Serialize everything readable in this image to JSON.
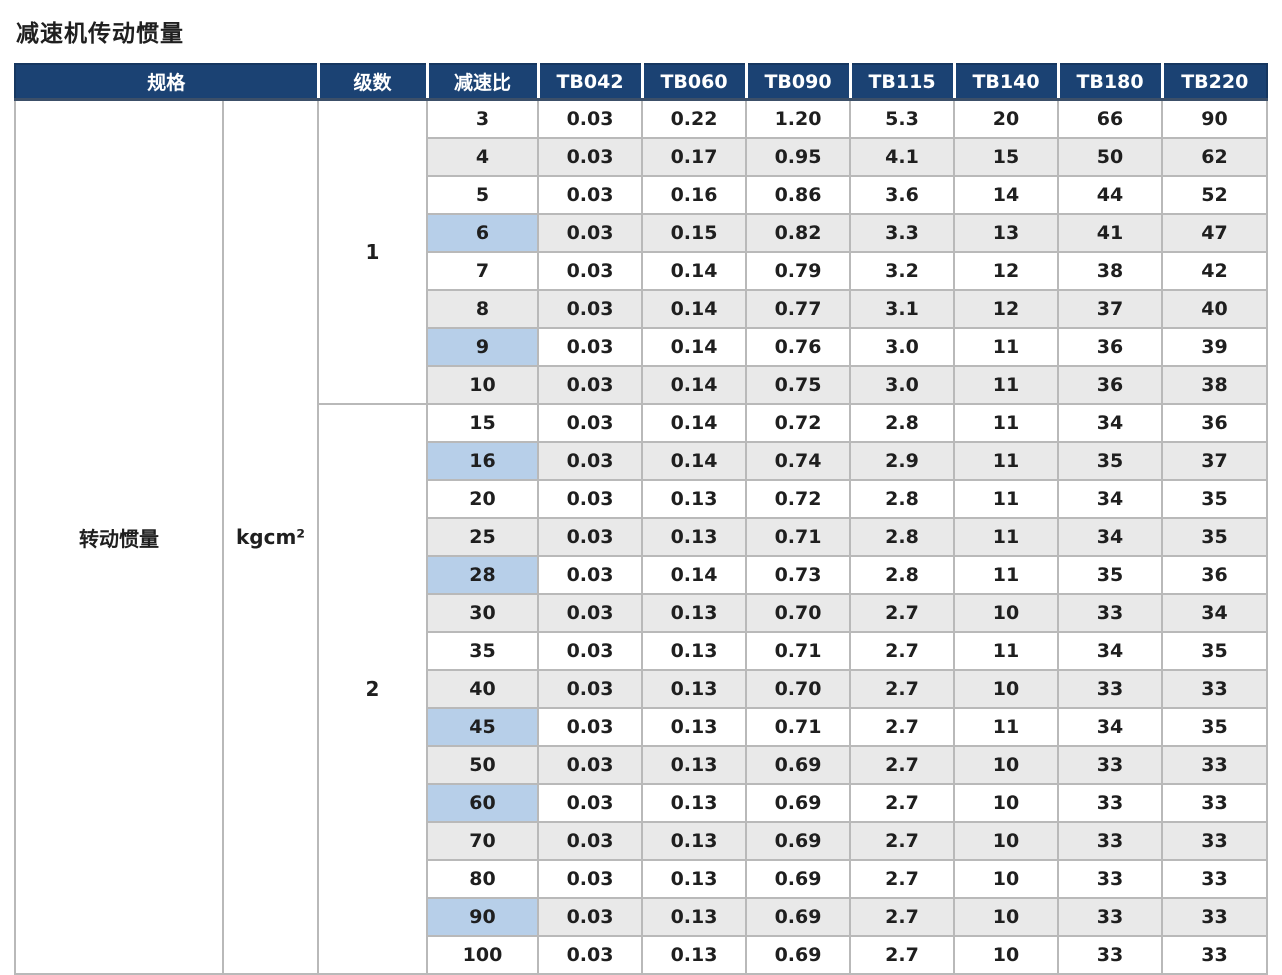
{
  "page_title": "减速机传动惯量",
  "colors": {
    "header_bg": "#1b4273",
    "row_alt_bg": "#e9e9e9",
    "highlight_bg": "#b7cfe9",
    "grid_border": "#b9b9b9",
    "outer_border": "#8f959b",
    "text": "#1f1f1f"
  },
  "table": {
    "headers": [
      "规格",
      "级数",
      "减速比",
      "TB042",
      "TB060",
      "TB090",
      "TB115",
      "TB140",
      "TB180",
      "TB220"
    ],
    "spec_label": "转动惯量",
    "unit_label": "kgcm²",
    "groups": [
      {
        "stage": "1",
        "rows": [
          {
            "ratio": "3",
            "highlight": false,
            "values": [
              "0.03",
              "0.22",
              "1.20",
              "5.3",
              "20",
              "66",
              "90"
            ]
          },
          {
            "ratio": "4",
            "highlight": false,
            "values": [
              "0.03",
              "0.17",
              "0.95",
              "4.1",
              "15",
              "50",
              "62"
            ]
          },
          {
            "ratio": "5",
            "highlight": false,
            "values": [
              "0.03",
              "0.16",
              "0.86",
              "3.6",
              "14",
              "44",
              "52"
            ]
          },
          {
            "ratio": "6",
            "highlight": true,
            "values": [
              "0.03",
              "0.15",
              "0.82",
              "3.3",
              "13",
              "41",
              "47"
            ]
          },
          {
            "ratio": "7",
            "highlight": false,
            "values": [
              "0.03",
              "0.14",
              "0.79",
              "3.2",
              "12",
              "38",
              "42"
            ]
          },
          {
            "ratio": "8",
            "highlight": false,
            "values": [
              "0.03",
              "0.14",
              "0.77",
              "3.1",
              "12",
              "37",
              "40"
            ]
          },
          {
            "ratio": "9",
            "highlight": true,
            "values": [
              "0.03",
              "0.14",
              "0.76",
              "3.0",
              "11",
              "36",
              "39"
            ]
          },
          {
            "ratio": "10",
            "highlight": false,
            "values": [
              "0.03",
              "0.14",
              "0.75",
              "3.0",
              "11",
              "36",
              "38"
            ]
          }
        ]
      },
      {
        "stage": "2",
        "rows": [
          {
            "ratio": "15",
            "highlight": false,
            "values": [
              "0.03",
              "0.14",
              "0.72",
              "2.8",
              "11",
              "34",
              "36"
            ]
          },
          {
            "ratio": "16",
            "highlight": true,
            "values": [
              "0.03",
              "0.14",
              "0.74",
              "2.9",
              "11",
              "35",
              "37"
            ]
          },
          {
            "ratio": "20",
            "highlight": false,
            "values": [
              "0.03",
              "0.13",
              "0.72",
              "2.8",
              "11",
              "34",
              "35"
            ]
          },
          {
            "ratio": "25",
            "highlight": false,
            "values": [
              "0.03",
              "0.13",
              "0.71",
              "2.8",
              "11",
              "34",
              "35"
            ]
          },
          {
            "ratio": "28",
            "highlight": true,
            "values": [
              "0.03",
              "0.14",
              "0.73",
              "2.8",
              "11",
              "35",
              "36"
            ]
          },
          {
            "ratio": "30",
            "highlight": false,
            "values": [
              "0.03",
              "0.13",
              "0.70",
              "2.7",
              "10",
              "33",
              "34"
            ]
          },
          {
            "ratio": "35",
            "highlight": false,
            "values": [
              "0.03",
              "0.13",
              "0.71",
              "2.7",
              "11",
              "34",
              "35"
            ]
          },
          {
            "ratio": "40",
            "highlight": false,
            "values": [
              "0.03",
              "0.13",
              "0.70",
              "2.7",
              "10",
              "33",
              "33"
            ]
          },
          {
            "ratio": "45",
            "highlight": true,
            "values": [
              "0.03",
              "0.13",
              "0.71",
              "2.7",
              "11",
              "34",
              "35"
            ]
          },
          {
            "ratio": "50",
            "highlight": false,
            "values": [
              "0.03",
              "0.13",
              "0.69",
              "2.7",
              "10",
              "33",
              "33"
            ]
          },
          {
            "ratio": "60",
            "highlight": true,
            "values": [
              "0.03",
              "0.13",
              "0.69",
              "2.7",
              "10",
              "33",
              "33"
            ]
          },
          {
            "ratio": "70",
            "highlight": false,
            "values": [
              "0.03",
              "0.13",
              "0.69",
              "2.7",
              "10",
              "33",
              "33"
            ]
          },
          {
            "ratio": "80",
            "highlight": false,
            "values": [
              "0.03",
              "0.13",
              "0.69",
              "2.7",
              "10",
              "33",
              "33"
            ]
          },
          {
            "ratio": "90",
            "highlight": true,
            "values": [
              "0.03",
              "0.13",
              "0.69",
              "2.7",
              "10",
              "33",
              "33"
            ]
          },
          {
            "ratio": "100",
            "highlight": false,
            "values": [
              "0.03",
              "0.13",
              "0.69",
              "2.7",
              "10",
              "33",
              "33"
            ]
          }
        ]
      }
    ]
  }
}
